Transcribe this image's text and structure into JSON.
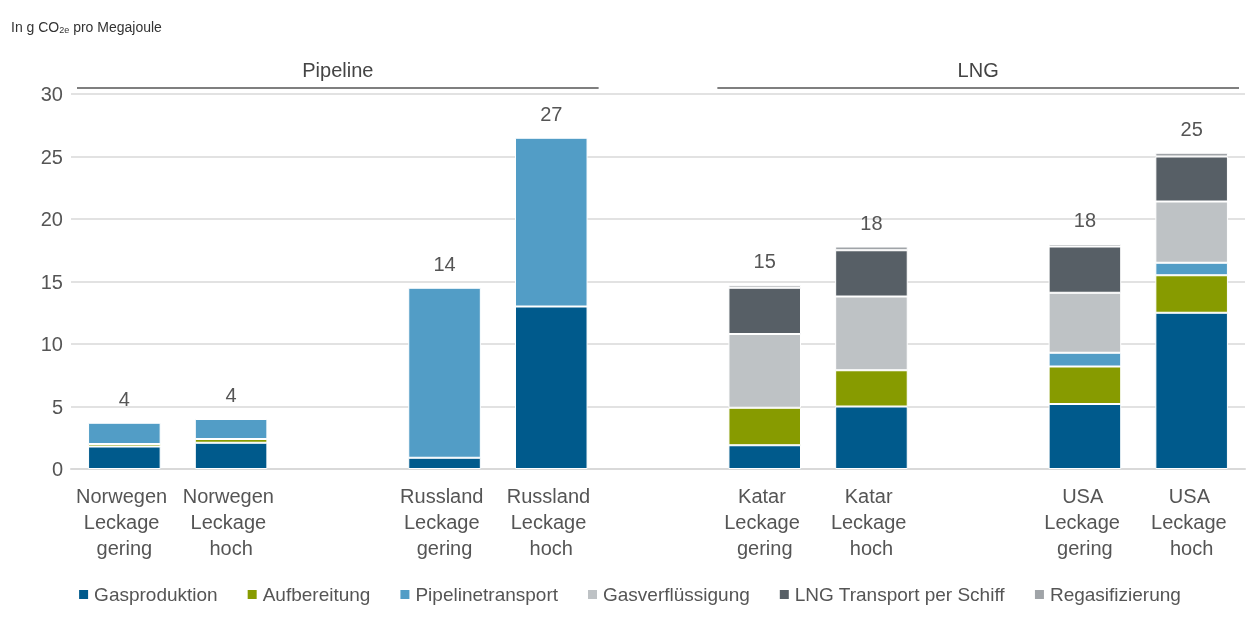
{
  "chart_data": {
    "type": "bar",
    "stacked": true,
    "ylabel": "In g CO$_{2e}$ pro Megajoule",
    "categories": [
      "Norwegen Leckage gering",
      "Norwegen Leckage hoch",
      null,
      "Russland Leckage gering",
      "Russland Leckage hoch",
      null,
      "Katar Leckage gering",
      "Katar Leckage hoch",
      null,
      "USA Leckage gering",
      "USA Leckage hoch"
    ],
    "series": [
      {
        "name": "Gasproduktion",
        "color": "#005a8c",
        "values": [
          1.8,
          2.1,
          null,
          0.9,
          13.0,
          null,
          1.9,
          5.0,
          null,
          5.2,
          12.5
        ]
      },
      {
        "name": "Aufbereitung",
        "color": "#879b00",
        "values": [
          0.2,
          0.3,
          null,
          null,
          null,
          null,
          3.0,
          2.9,
          null,
          3.0,
          3.0
        ]
      },
      {
        "name": "Pipelinetransport",
        "color": "#529dc6",
        "values": [
          1.7,
          1.6,
          null,
          13.6,
          13.5,
          null,
          null,
          null,
          null,
          1.1,
          1.0
        ]
      },
      {
        "name": "Gasverflüssigung",
        "color": "#bec2c5",
        "values": [
          null,
          null,
          null,
          null,
          null,
          null,
          5.9,
          5.9,
          null,
          4.8,
          4.9
        ]
      },
      {
        "name": "LNG Transport per Schiff",
        "color": "#575f66",
        "values": [
          null,
          null,
          null,
          null,
          null,
          null,
          3.7,
          3.7,
          null,
          3.7,
          3.6
        ]
      },
      {
        "name": "Regasifizierung",
        "color": "#a0a4a8",
        "values": [
          null,
          null,
          null,
          null,
          null,
          null,
          0.2,
          0.3,
          null,
          0.2,
          0.3
        ]
      }
    ],
    "totals": [
      "4",
      "4",
      null,
      "14",
      "27",
      null,
      "15",
      "18",
      null,
      "18",
      "25"
    ],
    "annotations": [
      "Pipeline",
      "LNG"
    ],
    "ylim": [
      0,
      30
    ],
    "yticks": [
      0,
      5,
      10,
      15,
      20,
      25,
      30
    ],
    "grid": "y",
    "legend": "bottom"
  }
}
